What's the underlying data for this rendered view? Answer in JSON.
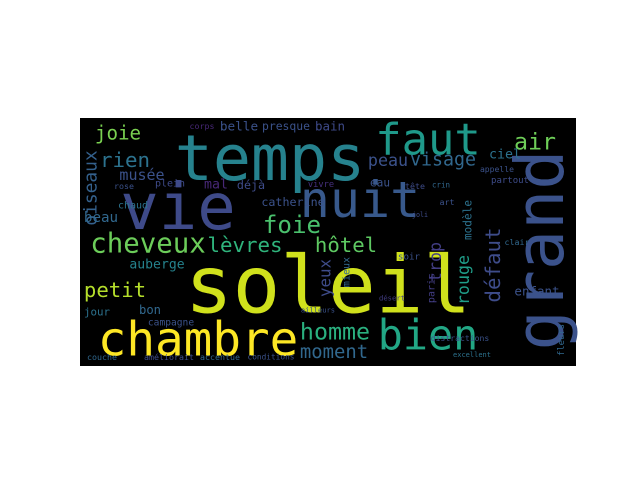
{
  "chart_data": {
    "type": "wordcloud",
    "background": "#000000",
    "words": [
      {
        "text": "soleil",
        "color": "#d0e11c"
      },
      {
        "text": "vie",
        "color": "#3e4a89"
      },
      {
        "text": "nuit",
        "color": "#38598c"
      },
      {
        "text": "temps",
        "color": "#26828e"
      },
      {
        "text": "faut",
        "color": "#1f998a"
      },
      {
        "text": "grand",
        "color": "#3b528b"
      },
      {
        "text": "chambre",
        "color": "#fde725"
      },
      {
        "text": "bien",
        "color": "#22a785"
      },
      {
        "text": "cheveux",
        "color": "#6ccd5a"
      },
      {
        "text": "lèvres",
        "color": "#2fb47c"
      },
      {
        "text": "petit",
        "color": "#b5de2b"
      },
      {
        "text": "foie",
        "color": "#4ac16d"
      },
      {
        "text": "hôtel",
        "color": "#5ec962"
      },
      {
        "text": "joie",
        "color": "#7ad151"
      },
      {
        "text": "rien",
        "color": "#2c728e"
      },
      {
        "text": "air",
        "color": "#6ece58"
      },
      {
        "text": "peau",
        "color": "#3b528b"
      },
      {
        "text": "visage",
        "color": "#31688e"
      },
      {
        "text": "homme",
        "color": "#2ab07f"
      },
      {
        "text": "moment",
        "color": "#31688e"
      },
      {
        "text": "rouge",
        "color": "#1f9e89"
      },
      {
        "text": "défaut",
        "color": "#3e4c8a"
      },
      {
        "text": "trop",
        "color": "#433e85"
      },
      {
        "text": "yeux",
        "color": "#3e4c8a"
      },
      {
        "text": "ciel",
        "color": "#2c728e"
      },
      {
        "text": "musée",
        "color": "#3b528b"
      },
      {
        "text": "oiseaux",
        "color": "#34618d"
      },
      {
        "text": "belle",
        "color": "#3b528b"
      },
      {
        "text": "déjà",
        "color": "#3e4c8a"
      },
      {
        "text": "mal",
        "color": "#482878"
      },
      {
        "text": "catherine",
        "color": "#3b528b"
      },
      {
        "text": "beau",
        "color": "#31688e"
      },
      {
        "text": "jour",
        "color": "#2c728e"
      },
      {
        "text": "auberge",
        "color": "#25838e"
      },
      {
        "text": "bon",
        "color": "#31688e"
      },
      {
        "text": "enfant",
        "color": "#3b528b"
      },
      {
        "text": "paris",
        "color": "#433e85"
      },
      {
        "text": "soir",
        "color": "#3b528b"
      },
      {
        "text": "fleurs",
        "color": "#31688e"
      },
      {
        "text": "plein",
        "color": "#3e4a89"
      },
      {
        "text": "rose",
        "color": "#3b528b"
      },
      {
        "text": "chaud",
        "color": "#2c728e"
      },
      {
        "text": "vivre",
        "color": "#46307e"
      },
      {
        "text": "tête",
        "color": "#3e4c8a"
      },
      {
        "text": "modèle",
        "color": "#2c728e"
      },
      {
        "text": "clair",
        "color": "#31688e"
      },
      {
        "text": "art",
        "color": "#3b528b"
      },
      {
        "text": "bain",
        "color": "#3e4a89"
      },
      {
        "text": "presque",
        "color": "#3b528b"
      },
      {
        "text": "corps",
        "color": "#482878"
      },
      {
        "text": "mieux",
        "color": "#31688e"
      },
      {
        "text": "eau",
        "color": "#3b528b"
      },
      {
        "text": "partout",
        "color": "#3e4c8a"
      },
      {
        "text": "appelle",
        "color": "#3b528b"
      },
      {
        "text": "crin",
        "color": "#31688e"
      },
      {
        "text": "couche",
        "color": "#31688e"
      },
      {
        "text": "campagne",
        "color": "#3b528b"
      },
      {
        "text": "améliorait",
        "color": "#3e4c8a"
      },
      {
        "text": "accentue",
        "color": "#31688e"
      },
      {
        "text": "conditions",
        "color": "#3b528b"
      },
      {
        "text": "distractions",
        "color": "#3b528b"
      },
      {
        "text": "excellent",
        "color": "#2c728e"
      },
      {
        "text": "désert",
        "color": "#433e85"
      },
      {
        "text": "ailleurs",
        "color": "#3b528b"
      },
      {
        "text": "joli",
        "color": "#3e4c8a"
      }
    ]
  }
}
